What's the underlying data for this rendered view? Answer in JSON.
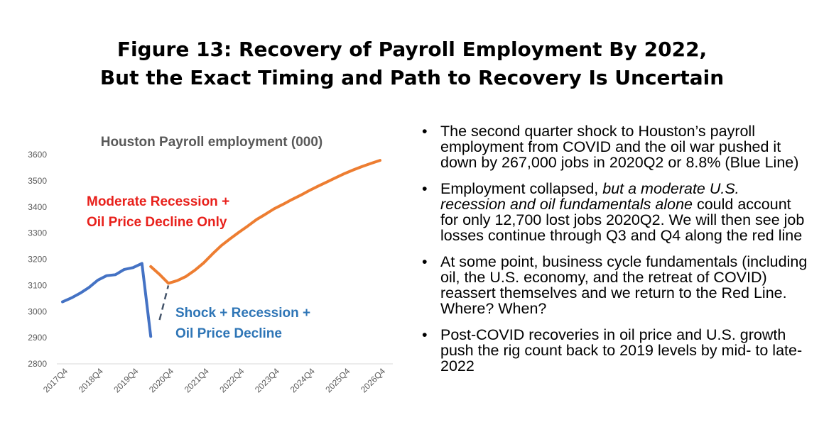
{
  "header": {
    "title_line1": "Figure 13: Recovery of Payroll Employment By 2022,",
    "title_line2": "But the Exact Timing and Path to Recovery Is Uncertain"
  },
  "chart_data": {
    "type": "line",
    "title": "Houston Payroll employment (000)",
    "xlabel": "",
    "ylabel": "",
    "ylim": [
      2800,
      3600
    ],
    "yticks": [
      2800,
      2900,
      3000,
      3100,
      3200,
      3300,
      3400,
      3500,
      3600
    ],
    "xticks": [
      "2017Q4",
      "2018Q4",
      "2019Q4",
      "2020Q4",
      "2021Q4",
      "2022Q4",
      "2023Q4",
      "2024Q4",
      "2025Q4",
      "2026Q4"
    ],
    "grid": false,
    "series": [
      {
        "color": "#4472C4",
        "x": [
          "2017Q4",
          "2018Q1",
          "2018Q2",
          "2018Q3",
          "2018Q4",
          "2019Q1",
          "2019Q2",
          "2019Q3",
          "2019Q4",
          "2020Q1",
          "2020Q2"
        ],
        "values": [
          3037,
          3052,
          3070,
          3092,
          3120,
          3137,
          3141,
          3161,
          3168,
          3184,
          2905
        ]
      },
      {
        "color": "#ED7D31",
        "x": [
          "2020Q2",
          "2020Q3",
          "2020Q4",
          "2021Q1",
          "2021Q2",
          "2021Q3",
          "2021Q4",
          "2022Q1",
          "2022Q2",
          "2022Q3",
          "2022Q4",
          "2023Q1",
          "2023Q2",
          "2023Q3",
          "2023Q4",
          "2024Q1",
          "2024Q2",
          "2024Q3",
          "2024Q4",
          "2025Q1",
          "2025Q2",
          "2025Q3",
          "2025Q4",
          "2026Q1",
          "2026Q2",
          "2026Q3",
          "2026Q4"
        ],
        "values": [
          3172,
          3142,
          3108,
          3118,
          3134,
          3158,
          3186,
          3220,
          3252,
          3278,
          3303,
          3327,
          3352,
          3372,
          3393,
          3410,
          3428,
          3445,
          3463,
          3480,
          3496,
          3512,
          3528,
          3542,
          3555,
          3567,
          3578
        ]
      },
      {
        "color": "#44546A",
        "dashed": true,
        "x": [
          "2020Q3",
          "2020Q4"
        ],
        "values": [
          2968,
          3100
        ]
      }
    ],
    "annotations": [
      {
        "lines": [
          "Moderate Recession +",
          "Oil Price Decline Only"
        ],
        "color": "#E8201B"
      },
      {
        "lines": [
          "Shock + Recession +",
          "Oil Price Decline"
        ],
        "color": "#2E75B6"
      }
    ]
  },
  "bullets": [
    {
      "segments": [
        {
          "text": "The second quarter shock to Houston’s payroll employment from COVID and the oil war pushed it down by 267,000 jobs in 2020Q2 or 8.8% (Blue Line)"
        }
      ]
    },
    {
      "segments": [
        {
          "text": "Employment collapsed, "
        },
        {
          "text": "but a moderate U.S. recession and oil fundamentals alone",
          "italic": true
        },
        {
          "text": " could account for only 12,700 lost jobs 2020Q2.  We will then see job losses continue through Q3 and Q4 along the red line"
        }
      ]
    },
    {
      "segments": [
        {
          "text": "At some point, business cycle fundamentals (including oil, the U.S. economy, and the retreat of COVID) reassert themselves and we return to the Red Line. Where? When?"
        }
      ]
    },
    {
      "segments": [
        {
          "text": "Post-COVID recoveries in oil price and U.S. growth push the rig count back to 2019 levels by mid- to late- 2022"
        }
      ]
    }
  ],
  "bullet_glyph": "•"
}
